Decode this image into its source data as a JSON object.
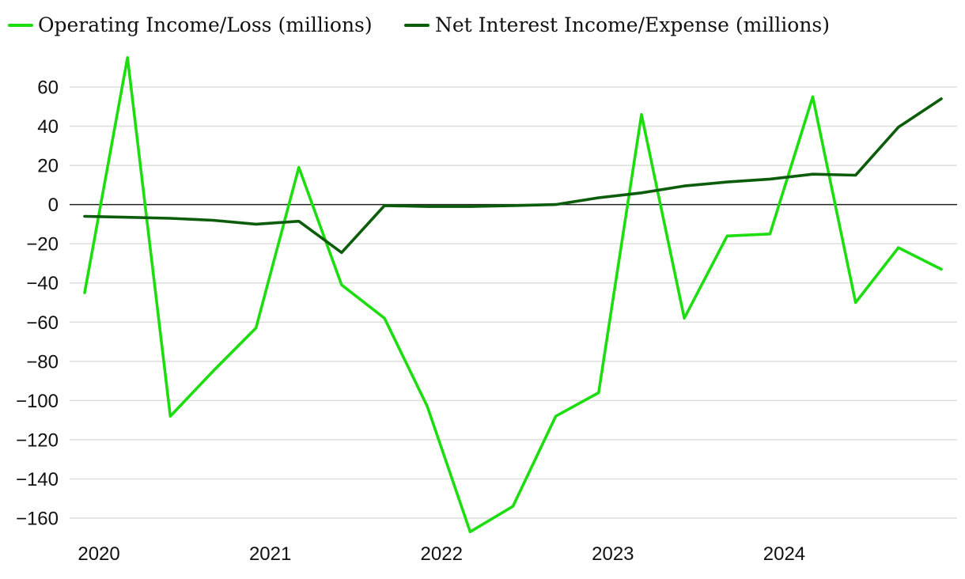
{
  "chart_data": {
    "type": "line",
    "title": "",
    "xlabel": "",
    "ylabel": "",
    "ylim": [
      -170,
      80
    ],
    "y_ticks": [
      60,
      40,
      20,
      0,
      -20,
      -40,
      -60,
      -80,
      -100,
      -120,
      -140,
      -160
    ],
    "x_ticks": [
      "2020",
      "2021",
      "2022",
      "2023",
      "2024"
    ],
    "grid": true,
    "legend": "top-left",
    "x": [
      "2019-12",
      "2020-03",
      "2020-06",
      "2020-09",
      "2020-12",
      "2021-03",
      "2021-06",
      "2021-09",
      "2021-12",
      "2022-03",
      "2022-06",
      "2022-09",
      "2022-12",
      "2023-03",
      "2023-06",
      "2023-09",
      "2023-12",
      "2024-03",
      "2024-06",
      "2024-09",
      "2024-12"
    ],
    "series": [
      {
        "name": "Operating Income/Loss (millions)",
        "color": "#1ddd10",
        "values": [
          -45,
          75,
          -108,
          -85,
          -63,
          19,
          -41,
          -58,
          -103,
          -167,
          -154,
          -108,
          -96,
          46,
          -58,
          -16,
          -15,
          55,
          -50,
          -22,
          -33
        ]
      },
      {
        "name": "Net Interest Income/Expense (millions)",
        "color": "#0b5d0b",
        "values": [
          -6,
          -6.5,
          -7,
          -8,
          -10,
          -8.5,
          -24.5,
          -0.5,
          -1,
          -1,
          -0.5,
          0,
          3.5,
          6,
          9.5,
          11.5,
          13,
          15.5,
          15,
          39.5,
          54
        ]
      }
    ]
  }
}
